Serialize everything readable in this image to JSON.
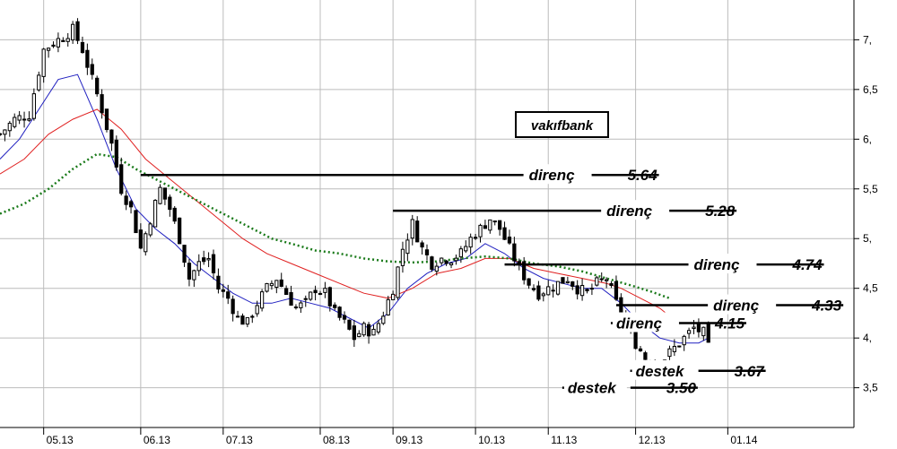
{
  "chart_data": {
    "type": "candlestick",
    "title": "vakıfbank",
    "x_ticks": [
      "05.13",
      "06.13",
      "07.13",
      "08.13",
      "09.13",
      "10.13",
      "11.13",
      "12.13",
      "01.14"
    ],
    "y_ticks": [
      {
        "value": 3.5,
        "label": "3,5"
      },
      {
        "value": 4.0,
        "label": "4,"
      },
      {
        "value": 4.5,
        "label": "4,5"
      },
      {
        "value": 5.0,
        "label": "5,"
      },
      {
        "value": 5.5,
        "label": "5,5"
      },
      {
        "value": 6.0,
        "label": "6,"
      },
      {
        "value": 6.5,
        "label": "6,5"
      },
      {
        "value": 7.0,
        "label": "7,"
      }
    ],
    "ylim": [
      3.1,
      7.4
    ],
    "grid": true,
    "colors": {
      "short_ma": "#2020c0",
      "mid_ma": "#e02020",
      "long_ma": "#1a7a1a",
      "candle": "#000000",
      "grid": "#bcbcbc"
    },
    "close_path": [
      [
        0,
        6.05
      ],
      [
        3,
        6.2
      ],
      [
        6,
        6.25
      ],
      [
        9,
        6.9
      ],
      [
        12,
        7.0
      ],
      [
        15,
        7.1
      ],
      [
        17,
        6.9
      ],
      [
        19,
        6.6
      ],
      [
        21,
        6.3
      ],
      [
        23,
        5.95
      ],
      [
        25,
        5.5
      ],
      [
        27,
        5.3
      ],
      [
        29,
        4.9
      ],
      [
        31,
        5.2
      ],
      [
        33,
        5.5
      ],
      [
        35,
        5.3
      ],
      [
        37,
        5.0
      ],
      [
        39,
        4.6
      ],
      [
        41,
        4.75
      ],
      [
        43,
        4.8
      ],
      [
        45,
        4.5
      ],
      [
        47,
        4.4
      ],
      [
        49,
        4.2
      ],
      [
        51,
        4.15
      ],
      [
        53,
        4.35
      ],
      [
        55,
        4.5
      ],
      [
        57,
        4.6
      ],
      [
        59,
        4.45
      ],
      [
        61,
        4.3
      ],
      [
        63,
        4.35
      ],
      [
        65,
        4.5
      ],
      [
        67,
        4.45
      ],
      [
        69,
        4.25
      ],
      [
        71,
        4.15
      ],
      [
        73,
        4.0
      ],
      [
        75,
        4.1
      ],
      [
        77,
        4.05
      ],
      [
        79,
        4.25
      ],
      [
        81,
        4.5
      ],
      [
        83,
        4.9
      ],
      [
        85,
        5.15
      ],
      [
        87,
        4.9
      ],
      [
        89,
        4.75
      ],
      [
        91,
        4.8
      ],
      [
        93,
        4.8
      ],
      [
        95,
        4.85
      ],
      [
        97,
        5.0
      ],
      [
        99,
        5.1
      ],
      [
        101,
        5.2
      ],
      [
        103,
        5.1
      ],
      [
        105,
        4.9
      ],
      [
        107,
        4.7
      ],
      [
        109,
        4.55
      ],
      [
        111,
        4.45
      ],
      [
        113,
        4.5
      ],
      [
        115,
        4.55
      ],
      [
        117,
        4.6
      ],
      [
        119,
        4.5
      ],
      [
        121,
        4.45
      ],
      [
        123,
        4.55
      ],
      [
        125,
        4.6
      ],
      [
        127,
        4.35
      ],
      [
        129,
        4.15
      ],
      [
        131,
        3.95
      ],
      [
        133,
        3.8
      ],
      [
        135,
        3.75
      ],
      [
        137,
        3.8
      ],
      [
        139,
        3.9
      ],
      [
        141,
        4.0
      ],
      [
        143,
        4.1
      ],
      [
        145,
        4.05
      ],
      [
        146,
        3.9
      ]
    ],
    "moving_averages": [
      {
        "kind": "short",
        "points": [
          [
            0,
            5.8
          ],
          [
            4,
            6.0
          ],
          [
            8,
            6.3
          ],
          [
            12,
            6.6
          ],
          [
            16,
            6.65
          ],
          [
            20,
            6.2
          ],
          [
            24,
            5.7
          ],
          [
            28,
            5.3
          ],
          [
            32,
            5.1
          ],
          [
            36,
            4.95
          ],
          [
            40,
            4.75
          ],
          [
            44,
            4.6
          ],
          [
            48,
            4.45
          ],
          [
            52,
            4.35
          ],
          [
            56,
            4.35
          ],
          [
            60,
            4.4
          ],
          [
            64,
            4.35
          ],
          [
            68,
            4.3
          ],
          [
            72,
            4.2
          ],
          [
            76,
            4.1
          ],
          [
            80,
            4.25
          ],
          [
            84,
            4.5
          ],
          [
            88,
            4.65
          ],
          [
            92,
            4.75
          ],
          [
            96,
            4.8
          ],
          [
            100,
            4.95
          ],
          [
            104,
            4.85
          ],
          [
            108,
            4.7
          ],
          [
            112,
            4.6
          ],
          [
            116,
            4.55
          ],
          [
            120,
            4.5
          ],
          [
            124,
            4.5
          ],
          [
            128,
            4.35
          ],
          [
            132,
            4.15
          ],
          [
            136,
            4.0
          ],
          [
            140,
            3.95
          ],
          [
            144,
            3.95
          ],
          [
            146,
            4.0
          ]
        ]
      },
      {
        "kind": "mid",
        "points": [
          [
            0,
            5.65
          ],
          [
            5,
            5.8
          ],
          [
            10,
            6.05
          ],
          [
            15,
            6.2
          ],
          [
            20,
            6.3
          ],
          [
            25,
            6.1
          ],
          [
            30,
            5.8
          ],
          [
            35,
            5.6
          ],
          [
            40,
            5.4
          ],
          [
            45,
            5.2
          ],
          [
            50,
            5.0
          ],
          [
            55,
            4.85
          ],
          [
            60,
            4.75
          ],
          [
            65,
            4.65
          ],
          [
            70,
            4.55
          ],
          [
            75,
            4.45
          ],
          [
            80,
            4.4
          ],
          [
            85,
            4.5
          ],
          [
            90,
            4.65
          ],
          [
            95,
            4.7
          ],
          [
            100,
            4.8
          ],
          [
            105,
            4.8
          ],
          [
            110,
            4.7
          ],
          [
            115,
            4.65
          ],
          [
            120,
            4.6
          ],
          [
            125,
            4.55
          ],
          [
            128,
            4.5
          ],
          [
            132,
            4.4
          ],
          [
            136,
            4.3
          ],
          [
            138,
            4.22
          ]
        ]
      },
      {
        "kind": "long",
        "points": [
          [
            0,
            5.25
          ],
          [
            5,
            5.35
          ],
          [
            10,
            5.5
          ],
          [
            15,
            5.7
          ],
          [
            20,
            5.85
          ],
          [
            24,
            5.82
          ],
          [
            28,
            5.7
          ],
          [
            32,
            5.6
          ],
          [
            36,
            5.5
          ],
          [
            40,
            5.4
          ],
          [
            44,
            5.3
          ],
          [
            48,
            5.2
          ],
          [
            52,
            5.1
          ],
          [
            56,
            5.0
          ],
          [
            60,
            4.95
          ],
          [
            65,
            4.88
          ],
          [
            70,
            4.85
          ],
          [
            75,
            4.8
          ],
          [
            80,
            4.77
          ],
          [
            85,
            4.76
          ],
          [
            90,
            4.77
          ],
          [
            95,
            4.8
          ],
          [
            100,
            4.82
          ],
          [
            105,
            4.8
          ],
          [
            110,
            4.75
          ],
          [
            115,
            4.72
          ],
          [
            120,
            4.67
          ],
          [
            125,
            4.6
          ],
          [
            130,
            4.53
          ],
          [
            134,
            4.47
          ],
          [
            138,
            4.4
          ]
        ]
      }
    ],
    "annotations": [
      {
        "label": "direnç",
        "value": "5.64",
        "x_from": 29,
        "y": 5.64,
        "label_x": 109
      },
      {
        "label": "direnç",
        "value": "5.28",
        "x_from": 81,
        "y": 5.28,
        "label_x": 125
      },
      {
        "label": "direnç",
        "value": "4.74",
        "x_from": 104,
        "y": 4.74,
        "label_x": 143
      },
      {
        "label": "direnç",
        "value": "4.33",
        "x_from": 127,
        "y": 4.33,
        "label_x": 147
      },
      {
        "label": "direnç",
        "value": "4.15",
        "x_from": 129,
        "y": 4.15,
        "label_x": 127
      },
      {
        "label": "destek",
        "value": "3.67",
        "x_from": 133,
        "y": 3.67,
        "label_x": 131
      },
      {
        "label": "destek",
        "value": "3.50",
        "x_from": 118,
        "y": 3.5,
        "label_x": 117
      }
    ]
  }
}
